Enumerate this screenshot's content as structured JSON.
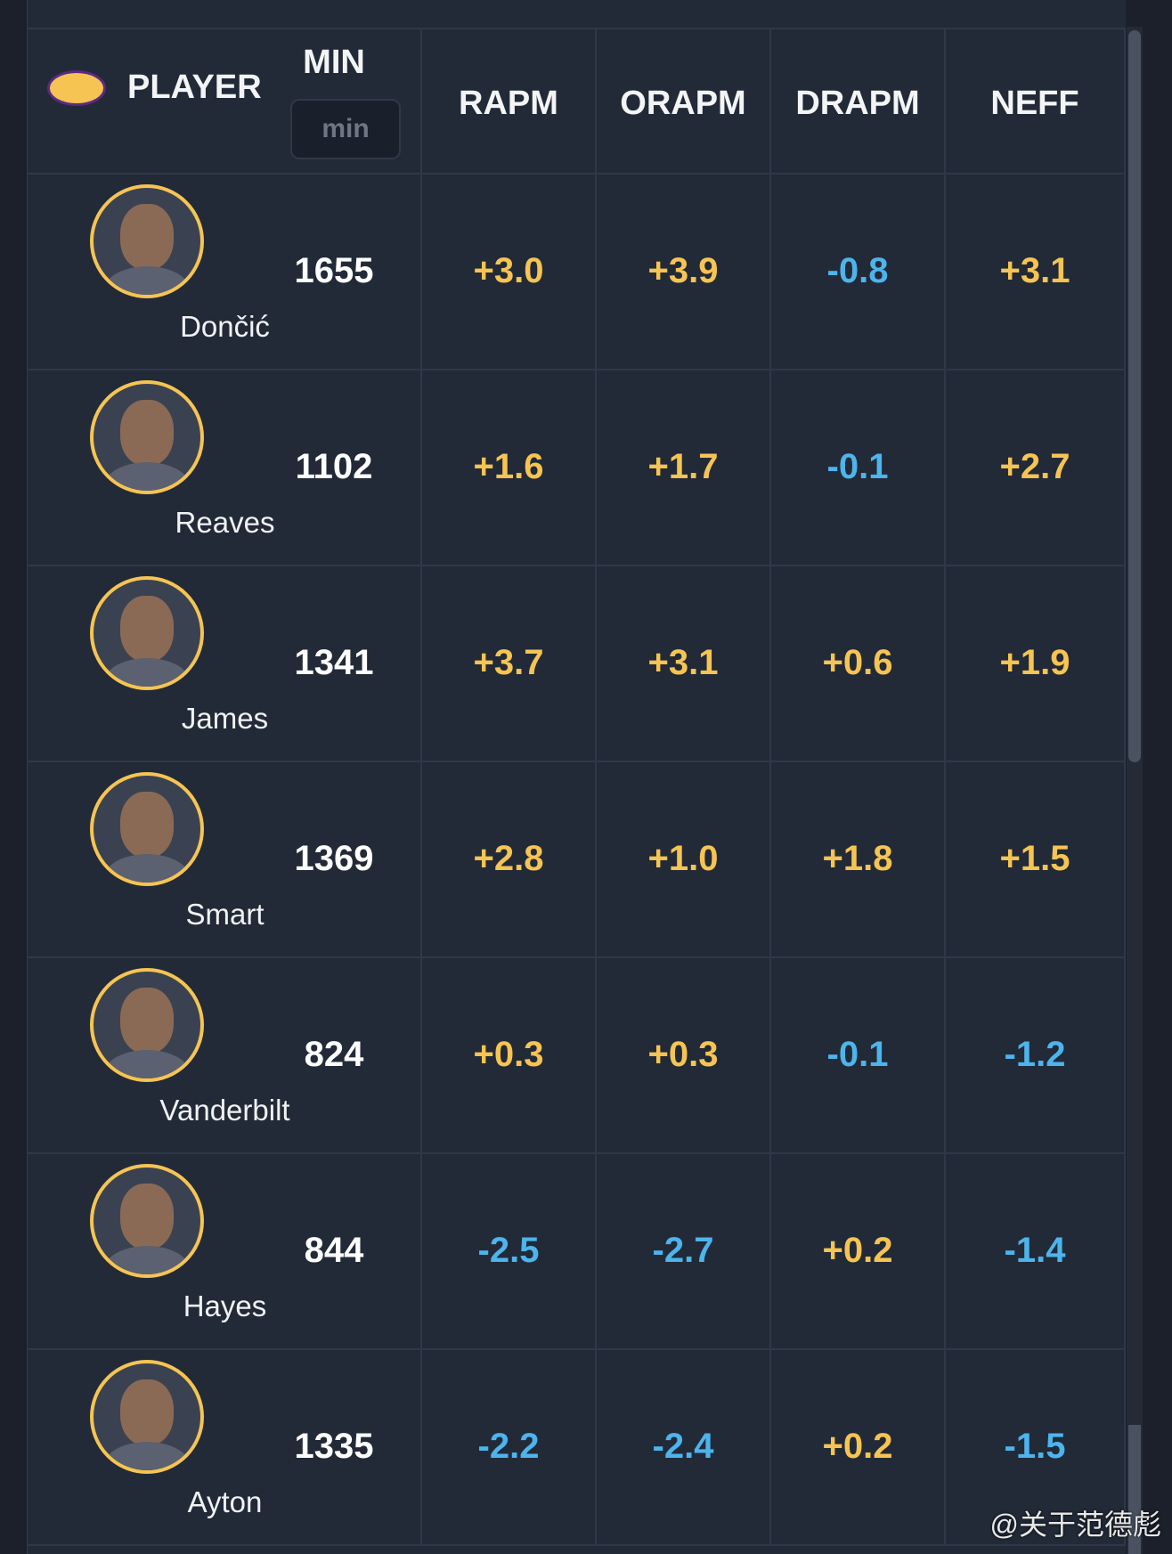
{
  "header": {
    "player": "PLAYER",
    "min": "MIN",
    "min_filter": "min",
    "columns": [
      "RAPM",
      "ORAPM",
      "DRAPM",
      "NEFF"
    ]
  },
  "table": {
    "rows": [
      [
        "Dončić",
        "1655",
        "+3.0",
        "+3.9",
        "-0.8",
        "+3.1"
      ],
      [
        "Reaves",
        "1102",
        "+1.6",
        "+1.7",
        "-0.1",
        "+2.7"
      ],
      [
        "James",
        "1341",
        "+3.7",
        "+3.1",
        "+0.6",
        "+1.9"
      ],
      [
        "Smart",
        "1369",
        "+2.8",
        "+1.0",
        "+1.8",
        "+1.5"
      ],
      [
        "Vanderbilt",
        "824",
        "+0.3",
        "+0.3",
        "-0.1",
        "-1.2"
      ],
      [
        "Hayes",
        "844",
        "-2.5",
        "-2.7",
        "+0.2",
        "-1.4"
      ],
      [
        "Ayton",
        "1335",
        "-2.2",
        "-2.4",
        "+0.2",
        "-1.5"
      ]
    ]
  },
  "watermark": "@关于范德彪"
}
